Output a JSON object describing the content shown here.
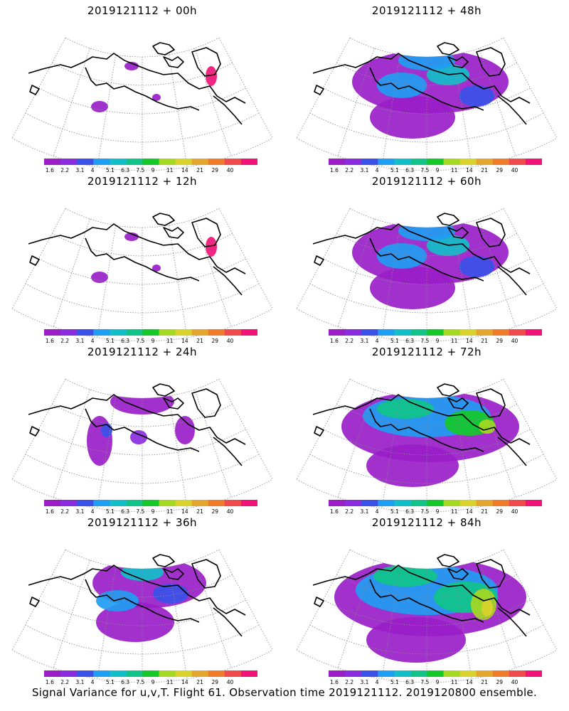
{
  "panels": [
    {
      "title": "2019121112 + 00h",
      "intensity": 0
    },
    {
      "title": "2019121112 + 48h",
      "intensity": 3
    },
    {
      "title": "2019121112 + 12h",
      "intensity": 0
    },
    {
      "title": "2019121112 + 60h",
      "intensity": 3
    },
    {
      "title": "2019121112 + 24h",
      "intensity": 1
    },
    {
      "title": "2019121112 + 72h",
      "intensity": 4
    },
    {
      "title": "2019121112 + 36h",
      "intensity": 2
    },
    {
      "title": "2019121112 + 84h",
      "intensity": 5
    }
  ],
  "colorbar": {
    "labels": [
      "1.6",
      "2.2",
      "3.1",
      "4",
      "5.1",
      "6.3",
      "7.5",
      "9",
      "11",
      "14",
      "21",
      "29",
      "40"
    ],
    "colors": [
      "#9a1ec8",
      "#8a2de0",
      "#3a52e8",
      "#1f9df2",
      "#12bfc8",
      "#10c38a",
      "#15c82a",
      "#a6d822",
      "#d8d22b",
      "#e4a62c",
      "#ee7a2a",
      "#f04a4a",
      "#f01478"
    ]
  },
  "footer": "Signal Variance for u,v,T. Flight 61. Observation time 2019121112. 2019120800 ensemble."
}
